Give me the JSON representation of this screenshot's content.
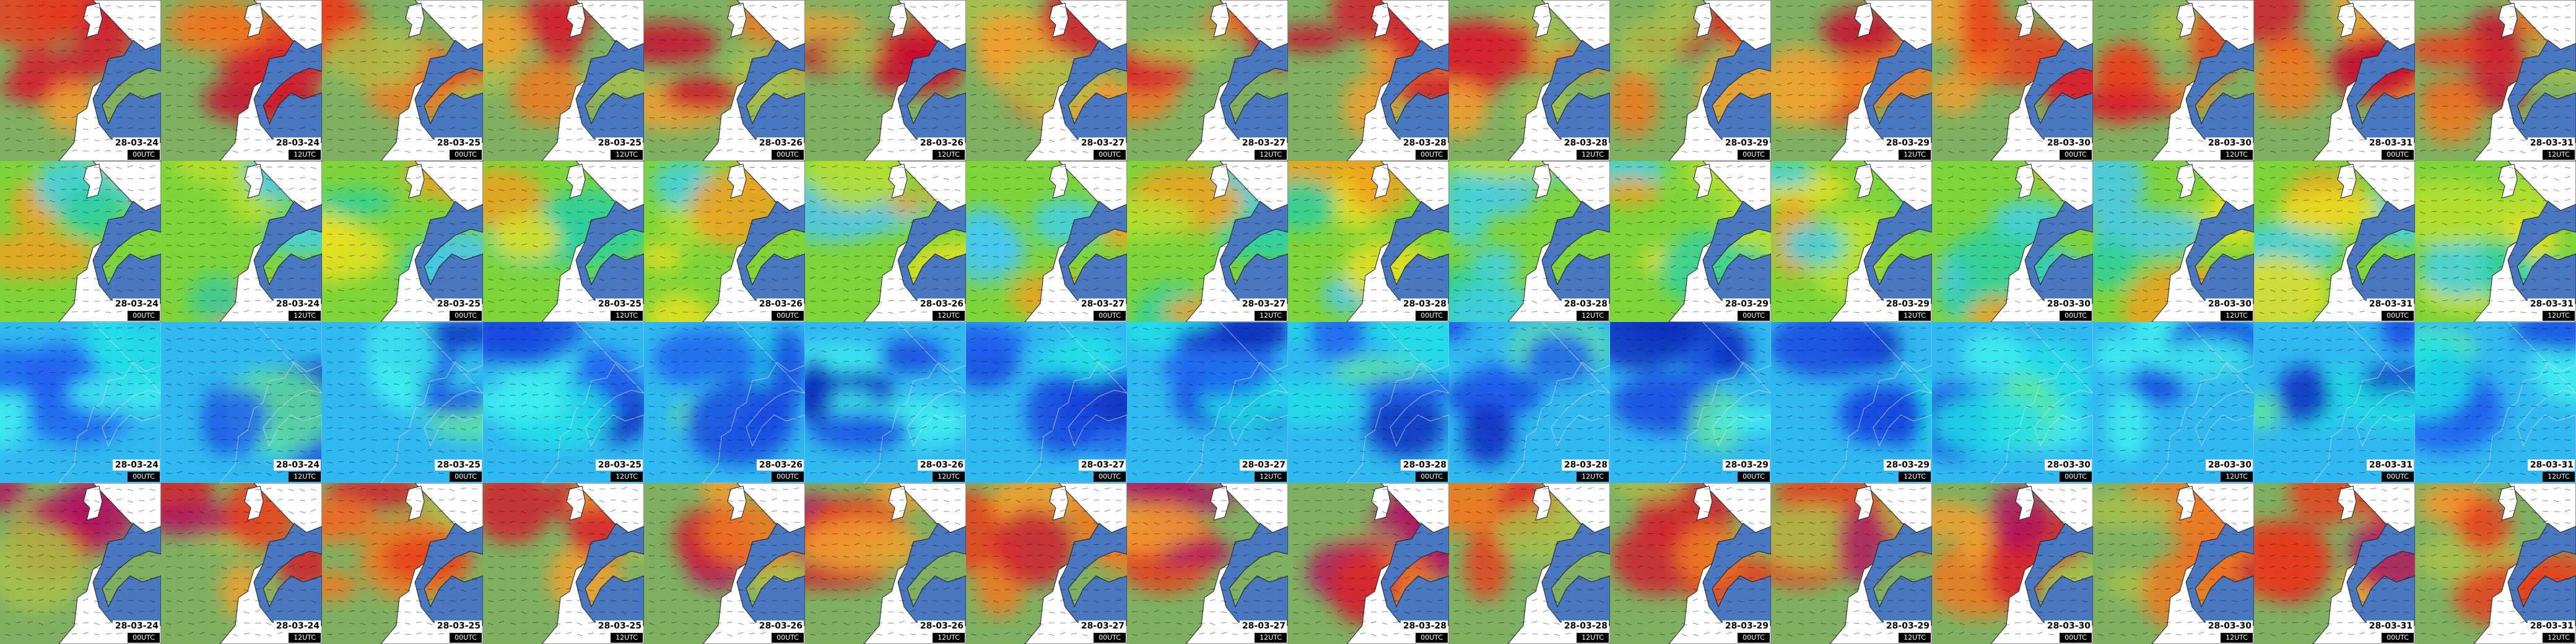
{
  "rows": [
    [
      {
        "date": "28-03-24",
        "time": "00UTC"
      },
      {
        "date": "28-03-24",
        "time": "12UTC"
      },
      {
        "date": "28-03-25",
        "time": "00UTC"
      },
      {
        "date": "28-03-25",
        "time": "12UTC"
      },
      {
        "date": "28-03-26",
        "time": "00UTC"
      },
      {
        "date": "28-03-26",
        "time": "12UTC"
      },
      {
        "date": "28-03-27",
        "time": "00UTC"
      },
      {
        "date": "28-03-27",
        "time": "12UTC"
      },
      {
        "date": "28-03-28",
        "time": "00UTC"
      },
      {
        "date": "28-03-28",
        "time": "12UTC"
      },
      {
        "date": "28-03-29",
        "time": "00UTC"
      },
      {
        "date": "28-03-29",
        "time": "12UTC"
      },
      {
        "date": "28-03-30",
        "time": "00UTC"
      },
      {
        "date": "28-03-30",
        "time": "12UTC"
      },
      {
        "date": "28-03-31",
        "time": "00UTC"
      },
      {
        "date": "28-03-31",
        "time": "12UTC"
      }
    ],
    [
      {
        "date": "28-03-24",
        "time": "00UTC"
      },
      {
        "date": "28-03-24",
        "time": "12UTC"
      },
      {
        "date": "28-03-25",
        "time": "00UTC"
      },
      {
        "date": "28-03-25",
        "time": "12UTC"
      },
      {
        "date": "28-03-26",
        "time": "00UTC"
      },
      {
        "date": "28-03-26",
        "time": "12UTC"
      },
      {
        "date": "28-03-27",
        "time": "00UTC"
      },
      {
        "date": "28-03-27",
        "time": "12UTC"
      },
      {
        "date": "28-03-28",
        "time": "00UTC"
      },
      {
        "date": "28-03-28",
        "time": "12UTC"
      },
      {
        "date": "28-03-29",
        "time": "00UTC"
      },
      {
        "date": "28-03-29",
        "time": "12UTC"
      },
      {
        "date": "28-03-30",
        "time": "00UTC"
      },
      {
        "date": "28-03-30",
        "time": "12UTC"
      },
      {
        "date": "28-03-31",
        "time": "00UTC"
      },
      {
        "date": "28-03-31",
        "time": "12UTC"
      }
    ],
    [
      {
        "date": "28-03-24",
        "time": "00UTC"
      },
      {
        "date": "28-03-24",
        "time": "12UTC"
      },
      {
        "date": "28-03-25",
        "time": "00UTC"
      },
      {
        "date": "28-03-25",
        "time": "12UTC"
      },
      {
        "date": "28-03-26",
        "time": "00UTC"
      },
      {
        "date": "28-03-26",
        "time": "12UTC"
      },
      {
        "date": "28-03-27",
        "time": "00UTC"
      },
      {
        "date": "28-03-27",
        "time": "12UTC"
      },
      {
        "date": "28-03-28",
        "time": "00UTC"
      },
      {
        "date": "28-03-28",
        "time": "12UTC"
      },
      {
        "date": "28-03-29",
        "time": "00UTC"
      },
      {
        "date": "28-03-29",
        "time": "12UTC"
      },
      {
        "date": "28-03-30",
        "time": "00UTC"
      },
      {
        "date": "28-03-30",
        "time": "12UTC"
      },
      {
        "date": "28-03-31",
        "time": "00UTC"
      },
      {
        "date": "28-03-31",
        "time": "12UTC"
      }
    ],
    [
      {
        "date": "28-03-24",
        "time": "00UTC"
      },
      {
        "date": "28-03-24",
        "time": "12UTC"
      },
      {
        "date": "28-03-25",
        "time": "00UTC"
      },
      {
        "date": "28-03-25",
        "time": "12UTC"
      },
      {
        "date": "28-03-26",
        "time": "00UTC"
      },
      {
        "date": "28-03-26",
        "time": "12UTC"
      },
      {
        "date": "28-03-27",
        "time": "00UTC"
      },
      {
        "date": "28-03-27",
        "time": "12UTC"
      },
      {
        "date": "28-03-28",
        "time": "00UTC"
      },
      {
        "date": "28-03-28",
        "time": "12UTC"
      },
      {
        "date": "28-03-29",
        "time": "00UTC"
      },
      {
        "date": "28-03-29",
        "time": "12UTC"
      },
      {
        "date": "28-03-30",
        "time": "00UTC"
      },
      {
        "date": "28-03-30",
        "time": "12UTC"
      },
      {
        "date": "28-03-31",
        "time": "00UTC"
      },
      {
        "date": "28-03-31",
        "time": "12UTC"
      }
    ]
  ]
}
